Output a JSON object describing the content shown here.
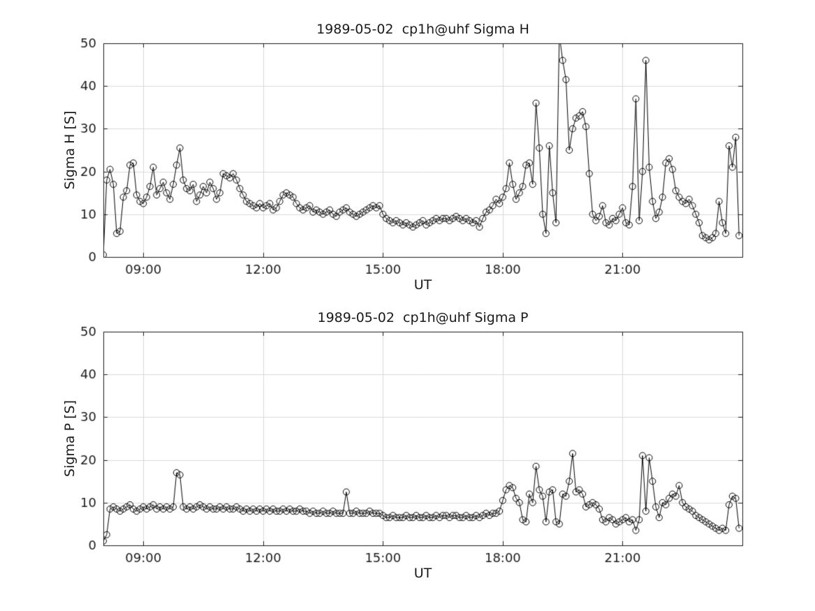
{
  "page": {
    "background": "#ffffff",
    "text_color": "#1a1a1a"
  },
  "chart_data": [
    {
      "type": "line",
      "title": "1989-05-02  cp1h@uhf Sigma H",
      "xlabel": "UT",
      "ylabel": "Sigma H [S]",
      "xlim": [
        8,
        24
      ],
      "ylim": [
        0,
        50
      ],
      "xticks": [
        9,
        12,
        15,
        18,
        21
      ],
      "xtick_labels": [
        "09:00",
        "12:00",
        "15:00",
        "18:00",
        "21:00"
      ],
      "yticks": [
        0,
        10,
        20,
        30,
        40,
        50
      ],
      "ytick_labels": [
        "0",
        "10",
        "20",
        "30",
        "40",
        "50"
      ],
      "grid": true,
      "legend": "none",
      "marker": "circle",
      "color": "#000000",
      "grid_color": "#d9d9d9",
      "x_start_hour": 8.0,
      "x_step_minutes": 5,
      "values": [
        0.5,
        18,
        20.5,
        17,
        5.5,
        6,
        14,
        15.5,
        21.5,
        22,
        14.5,
        13,
        12.5,
        14,
        16.5,
        21,
        14.5,
        16,
        17.5,
        15,
        13.5,
        17,
        21.5,
        25.5,
        18,
        16,
        15.5,
        17,
        13,
        14.5,
        16.5,
        15,
        17.5,
        16,
        13.5,
        15,
        19.5,
        19,
        18.5,
        19.5,
        18,
        16,
        14.5,
        13,
        12.5,
        12,
        11.5,
        12.5,
        11.5,
        12,
        12.5,
        11,
        11.5,
        13,
        14.5,
        15,
        14.5,
        14,
        12.5,
        11.5,
        11,
        11.5,
        12,
        10.5,
        11,
        10.5,
        10,
        10.5,
        11,
        10,
        9.5,
        10.5,
        11,
        11.5,
        10.5,
        10,
        9.5,
        10,
        10.5,
        11,
        11.5,
        12,
        11.5,
        12,
        10,
        9,
        8.5,
        8,
        8.5,
        8,
        7.5,
        8,
        7.5,
        7,
        7.5,
        8,
        8.5,
        7.5,
        8,
        8.5,
        9,
        8.5,
        9,
        9,
        8.5,
        9,
        9.5,
        9,
        8.5,
        9,
        8.5,
        8,
        8.5,
        7,
        9,
        10.5,
        11,
        12,
        13.5,
        12.5,
        14,
        16,
        22,
        17,
        13.5,
        15,
        16.5,
        21.5,
        22,
        17,
        36,
        25.5,
        10,
        5.5,
        26,
        15,
        8,
        52,
        46,
        41.5,
        25,
        30,
        32.5,
        33,
        34,
        30.5,
        19.5,
        10,
        8.5,
        9.5,
        12,
        8,
        7.5,
        9,
        8.5,
        10,
        11.5,
        8,
        7.5,
        16.5,
        37,
        8.5,
        20,
        46,
        21,
        13,
        9,
        10.5,
        14,
        22,
        23,
        20.5,
        15.5,
        14,
        13,
        12.5,
        13.5,
        12,
        10,
        8,
        5,
        4.5,
        4,
        4.5,
        5.5,
        13,
        8,
        5.5,
        26,
        21,
        28,
        5
      ]
    },
    {
      "type": "line",
      "title": "1989-05-02  cp1h@uhf Sigma P",
      "xlabel": "UT",
      "ylabel": "Sigma P [S]",
      "xlim": [
        8,
        24
      ],
      "ylim": [
        0,
        50
      ],
      "xticks": [
        9,
        12,
        15,
        18,
        21
      ],
      "xtick_labels": [
        "09:00",
        "12:00",
        "15:00",
        "18:00",
        "21:00"
      ],
      "yticks": [
        0,
        10,
        20,
        30,
        40,
        50
      ],
      "ytick_labels": [
        "0",
        "10",
        "20",
        "30",
        "40",
        "50"
      ],
      "grid": true,
      "legend": "none",
      "marker": "circle",
      "color": "#000000",
      "grid_color": "#d9d9d9",
      "x_start_hour": 8.0,
      "x_step_minutes": 5,
      "values": [
        1,
        2.5,
        8.5,
        9,
        8.5,
        8,
        8.5,
        9,
        9.5,
        8.5,
        8,
        8.5,
        9,
        8.5,
        9,
        9.5,
        8.5,
        9,
        8.5,
        9,
        8.5,
        9,
        17,
        16.5,
        9,
        8.5,
        9,
        8.5,
        9,
        9.5,
        9,
        8.5,
        9,
        8.5,
        8.5,
        9,
        8.5,
        9,
        8.5,
        8.5,
        9,
        8.5,
        8,
        8.5,
        8,
        8.5,
        8,
        8.5,
        8,
        8.5,
        8,
        8.5,
        8,
        8,
        8.5,
        8,
        8.5,
        8,
        8,
        8.5,
        8,
        8,
        7.5,
        8,
        7.5,
        7.5,
        8,
        7.5,
        7.5,
        8,
        7.5,
        7.5,
        7.5,
        12.5,
        7.5,
        7.5,
        8,
        7.5,
        7.5,
        7.5,
        8,
        7.5,
        7.5,
        7.5,
        7,
        6.5,
        6.5,
        7,
        6.5,
        6.5,
        6.5,
        7,
        6.5,
        6.5,
        7,
        6.5,
        6.5,
        7,
        6.5,
        6.5,
        7,
        6.5,
        7,
        7,
        6.5,
        7,
        7,
        6.5,
        6.5,
        7,
        6.5,
        6.5,
        7,
        6.5,
        7,
        7.5,
        7,
        7.5,
        7.5,
        8,
        10.5,
        13,
        14,
        13.5,
        11,
        10,
        6,
        5.5,
        12,
        10,
        18.5,
        13,
        11.5,
        5.5,
        12.5,
        13,
        5.5,
        5,
        12,
        11.5,
        15,
        21.5,
        12.5,
        13,
        12,
        9,
        9.5,
        10,
        9.5,
        8.5,
        6,
        5.5,
        6.5,
        6,
        5,
        5.5,
        6,
        6.5,
        5.5,
        6,
        3.5,
        6,
        21,
        8,
        20.5,
        15,
        9,
        6.5,
        10,
        9.5,
        11,
        12,
        11.5,
        14,
        10,
        9,
        8.5,
        8,
        7,
        6.5,
        6,
        5.5,
        5,
        4.5,
        4,
        3.5,
        4,
        3.5,
        9.5,
        11.5,
        11,
        4
      ]
    }
  ]
}
